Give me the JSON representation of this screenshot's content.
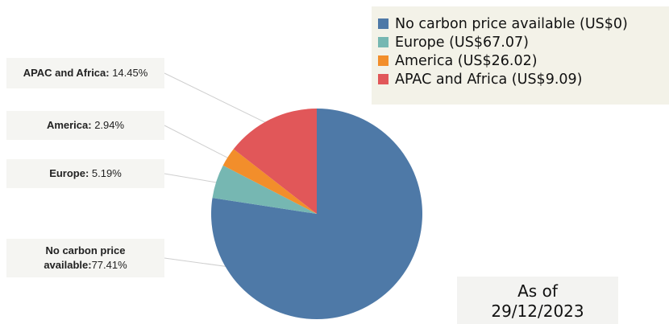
{
  "chart_data": {
    "type": "pie",
    "slices": [
      {
        "name": "No carbon price available",
        "value": 77.41,
        "color": "#4e79a7"
      },
      {
        "name": "Europe",
        "value": 5.19,
        "color": "#76b7b2"
      },
      {
        "name": "America",
        "value": 2.94,
        "color": "#f28e2b"
      },
      {
        "name": "APAC and Africa",
        "value": 14.45,
        "color": "#e15759"
      }
    ],
    "legend": {
      "placement": "top-right",
      "entries": [
        "No carbon price available (US$0)",
        "Europe (US$67.07)",
        "America (US$26.02)",
        "APAC and Africa (US$9.09)"
      ]
    },
    "labels": {
      "apac_name": "APAC and Africa:",
      "apac_value": " 14.45%",
      "america_name": "America:",
      "america_value": " 2.94%",
      "europe_name": "Europe:",
      "europe_value": " 5.19%",
      "nocarbon_name_line1": "No carbon price",
      "nocarbon_name_line2": "available:",
      "nocarbon_value": "77.41%"
    }
  },
  "footer": {
    "as_of_line1": "As of",
    "as_of_line2": "29/12/2023"
  }
}
